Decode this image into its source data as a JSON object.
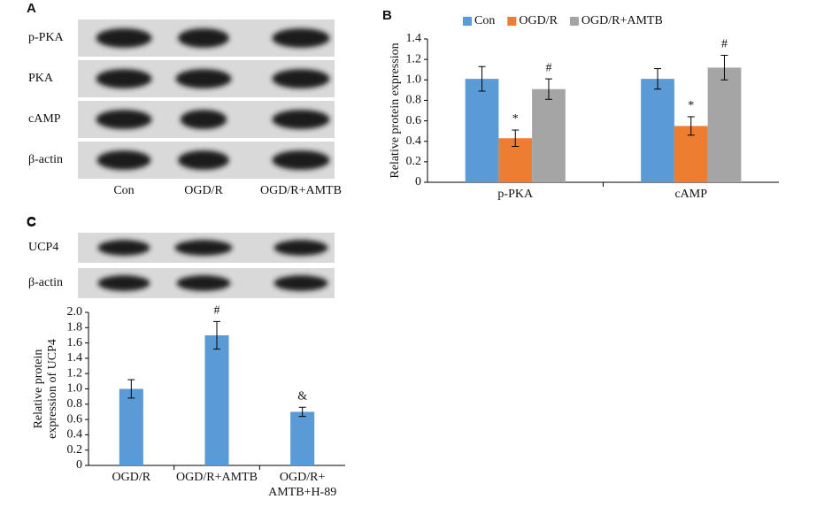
{
  "blot_a": {
    "label": "A",
    "rows": [
      "p-PKA",
      "PKA",
      "cAMP",
      "β-actin"
    ],
    "lanes": [
      "Con",
      "OGD/R",
      "OGD/R+AMTB"
    ]
  },
  "blot_c": {
    "label": "C",
    "rows": [
      "UCP4",
      "β-actin"
    ]
  },
  "chart_data": [
    {
      "type": "bar",
      "label": "B",
      "ylabel": "Relative protein expression",
      "categories": [
        "p-PKA",
        "cAMP"
      ],
      "series": [
        {
          "name": "Con",
          "color": "#5b9bd5",
          "values": [
            1.01,
            1.01
          ],
          "errors": [
            0.12,
            0.1
          ],
          "annotations": [
            null,
            null
          ]
        },
        {
          "name": "OGD/R",
          "color": "#ed7d31",
          "values": [
            0.43,
            0.55
          ],
          "errors": [
            0.08,
            0.09
          ],
          "annotations": [
            "*",
            "*"
          ]
        },
        {
          "name": "OGD/R+AMTB",
          "color": "#a5a5a5",
          "values": [
            0.91,
            1.12
          ],
          "errors": [
            0.1,
            0.12
          ],
          "annotations": [
            "#",
            "#"
          ]
        }
      ],
      "ylim": [
        0,
        1.4
      ],
      "yticks": [
        0,
        0.2,
        0.4,
        0.6,
        0.8,
        {
          "value": 1,
          "label": "1.0"
        },
        1.2,
        1.4
      ],
      "legend": "top"
    },
    {
      "type": "bar",
      "label": "C",
      "ylabel": [
        "Relative protein",
        "expression of UCP4"
      ],
      "categories": [
        [
          "OGD/R"
        ],
        [
          "OGD/R+AMTB"
        ],
        [
          "OGD/R+",
          "AMTB+H-89"
        ]
      ],
      "series": [
        {
          "color": "#5b9bd5",
          "values": [
            1.0,
            1.7,
            0.7
          ],
          "errors": [
            0.12,
            0.18,
            0.06
          ],
          "annotations": [
            null,
            "#",
            "&"
          ]
        }
      ],
      "ylim": [
        0,
        2
      ],
      "yticks": [
        0,
        0.2,
        0.4,
        0.6,
        0.8,
        {
          "value": 1,
          "label": "1.0"
        },
        1.2,
        1.4,
        1.6,
        1.8,
        {
          "value": 2,
          "label": "2.0"
        }
      ]
    }
  ]
}
